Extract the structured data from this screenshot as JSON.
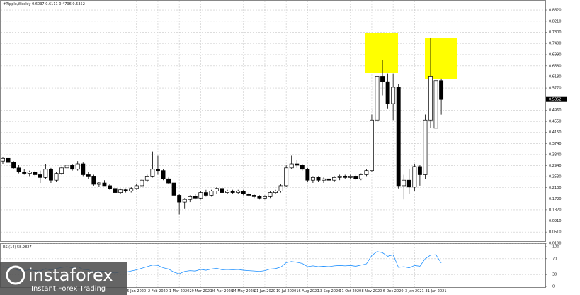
{
  "chart_data": [
    {
      "type": "candlestick",
      "title": "#Ripple,Weekly",
      "categories": [
        null,
        null,
        null,
        null,
        null,
        null,
        null,
        null,
        null,
        null,
        null,
        null,
        null,
        null,
        null,
        null,
        null,
        null,
        null,
        null,
        null,
        null,
        null,
        null,
        null,
        "5 Jan 2020",
        null,
        null,
        null,
        "2 Feb 2020",
        null,
        null,
        null,
        "1 Mar 2020",
        null,
        null,
        null,
        "29 Mar 2020",
        null,
        null,
        null,
        "26 Apr 2020",
        null,
        null,
        null,
        "24 May 2020",
        null,
        null,
        null,
        "21 Jun 2020",
        null,
        null,
        null,
        "19 Jul 2020",
        null,
        null,
        null,
        "16 Aug 2020",
        null,
        null,
        null,
        "13 Sep 2020",
        null,
        null,
        null,
        "11 Oct 2020",
        null,
        null,
        null,
        "8 Nov 2020",
        null,
        null,
        null,
        "6 Dec 2020",
        null,
        null,
        null,
        "3 Jan 2021",
        null,
        null,
        null,
        "31 Jan 2021",
        null
      ],
      "open": [
        0.31,
        0.32,
        0.305,
        0.285,
        0.27,
        0.265,
        0.27,
        0.26,
        0.25,
        0.28,
        0.24,
        0.265,
        0.285,
        0.295,
        0.28,
        0.3,
        0.26,
        0.255,
        0.225,
        0.23,
        0.22,
        0.21,
        0.195,
        0.205,
        0.2,
        0.21,
        0.22,
        0.24,
        0.255,
        0.28,
        0.275,
        0.245,
        0.23,
        0.185,
        0.16,
        0.17,
        0.18,
        0.175,
        0.195,
        0.185,
        0.2,
        0.21,
        0.195,
        0.2,
        0.195,
        0.2,
        0.19,
        0.185,
        0.18,
        0.175,
        0.18,
        0.195,
        0.2,
        0.22,
        0.285,
        0.3,
        0.295,
        0.28,
        0.24,
        0.25,
        0.24,
        0.245,
        0.24,
        0.25,
        0.255,
        0.25,
        0.255,
        0.245,
        0.26,
        0.275,
        0.46,
        0.62,
        0.6,
        0.52,
        0.58,
        0.22,
        0.24,
        0.215,
        0.29,
        0.26,
        0.46,
        0.43,
        0.6037
      ],
      "high": [
        0.325,
        0.325,
        0.31,
        0.295,
        0.28,
        0.275,
        0.275,
        0.275,
        0.3,
        0.285,
        0.27,
        0.29,
        0.3,
        0.3,
        0.31,
        0.305,
        0.27,
        0.26,
        0.235,
        0.24,
        0.225,
        0.215,
        0.21,
        0.21,
        0.215,
        0.225,
        0.245,
        0.26,
        0.345,
        0.33,
        0.28,
        0.25,
        0.235,
        0.19,
        0.175,
        0.185,
        0.19,
        0.2,
        0.205,
        0.205,
        0.215,
        0.225,
        0.205,
        0.205,
        0.205,
        0.205,
        0.195,
        0.19,
        0.185,
        0.185,
        0.2,
        0.205,
        0.225,
        0.295,
        0.33,
        0.315,
        0.3,
        0.285,
        0.255,
        0.255,
        0.25,
        0.25,
        0.255,
        0.26,
        0.26,
        0.26,
        0.26,
        0.265,
        0.28,
        0.48,
        0.78,
        0.68,
        0.63,
        0.63,
        0.59,
        0.26,
        0.28,
        0.3,
        0.295,
        0.48,
        0.76,
        0.64,
        0.6111
      ],
      "low": [
        0.3,
        0.3,
        0.28,
        0.265,
        0.26,
        0.255,
        0.255,
        0.23,
        0.245,
        0.23,
        0.235,
        0.26,
        0.28,
        0.275,
        0.275,
        0.255,
        0.245,
        0.22,
        0.215,
        0.22,
        0.205,
        0.19,
        0.19,
        0.195,
        0.195,
        0.205,
        0.215,
        0.235,
        0.25,
        0.26,
        0.24,
        0.225,
        0.175,
        0.115,
        0.135,
        0.16,
        0.17,
        0.17,
        0.18,
        0.18,
        0.19,
        0.19,
        0.19,
        0.19,
        0.19,
        0.185,
        0.18,
        0.175,
        0.17,
        0.17,
        0.175,
        0.19,
        0.195,
        0.215,
        0.28,
        0.285,
        0.275,
        0.235,
        0.23,
        0.235,
        0.23,
        0.235,
        0.235,
        0.24,
        0.245,
        0.245,
        0.24,
        0.24,
        0.255,
        0.27,
        0.45,
        0.55,
        0.5,
        0.46,
        0.21,
        0.17,
        0.19,
        0.2,
        0.22,
        0.245,
        0.43,
        0.4,
        0.4796
      ],
      "close": [
        0.32,
        0.305,
        0.285,
        0.27,
        0.265,
        0.27,
        0.26,
        0.25,
        0.28,
        0.24,
        0.265,
        0.285,
        0.295,
        0.28,
        0.3,
        0.26,
        0.255,
        0.225,
        0.23,
        0.22,
        0.21,
        0.195,
        0.205,
        0.2,
        0.21,
        0.22,
        0.24,
        0.255,
        0.28,
        0.275,
        0.245,
        0.23,
        0.185,
        0.16,
        0.17,
        0.18,
        0.175,
        0.195,
        0.185,
        0.2,
        0.21,
        0.195,
        0.2,
        0.195,
        0.2,
        0.19,
        0.185,
        0.18,
        0.175,
        0.18,
        0.195,
        0.2,
        0.22,
        0.285,
        0.3,
        0.295,
        0.28,
        0.24,
        0.25,
        0.24,
        0.245,
        0.24,
        0.25,
        0.255,
        0.25,
        0.255,
        0.245,
        0.26,
        0.275,
        0.46,
        0.62,
        0.6,
        0.52,
        0.58,
        0.22,
        0.24,
        0.215,
        0.29,
        0.26,
        0.46,
        0.62,
        0.6037,
        0.5352
      ],
      "ylim": [
        0.01,
        0.888
      ],
      "yticks": [
        {
          "value": 0.862,
          "label": "0.8620"
        },
        {
          "value": 0.821,
          "label": "0.8210"
        },
        {
          "value": 0.78,
          "label": "0.7800"
        },
        {
          "value": 0.74,
          "label": "0.7400"
        },
        {
          "value": 0.699,
          "label": "0.6990"
        },
        {
          "value": 0.658,
          "label": "0.6580"
        },
        {
          "value": 0.618,
          "label": "0.6180"
        },
        {
          "value": 0.577,
          "label": "0.5770"
        },
        {
          "value": 0.496,
          "label": "0.4960"
        },
        {
          "value": 0.455,
          "label": "0.4550"
        },
        {
          "value": 0.415,
          "label": "0.4150"
        },
        {
          "value": 0.374,
          "label": "0.3740"
        },
        {
          "value": 0.334,
          "label": "0.3340"
        },
        {
          "value": 0.294,
          "label": "0.2940"
        },
        {
          "value": 0.253,
          "label": "0.2530"
        },
        {
          "value": 0.213,
          "label": "0.2130"
        },
        {
          "value": 0.172,
          "label": "0.1720"
        },
        {
          "value": 0.132,
          "label": "0.1320"
        },
        {
          "value": 0.091,
          "label": "0.0910"
        },
        {
          "value": 0.051,
          "label": "0.0510"
        },
        {
          "value": 0.01,
          "label": "0.0100"
        }
      ],
      "up_color": "#ffffff",
      "down_color": "#000000",
      "grid": true
    },
    {
      "type": "line",
      "title": "RSI(14)",
      "color": "#1e90ff",
      "values": [
        50,
        48,
        44,
        41,
        40,
        42,
        40,
        39,
        45,
        41,
        45,
        48,
        50,
        47,
        50,
        43,
        42,
        37,
        39,
        38,
        36,
        34,
        37,
        36,
        39,
        42,
        46,
        50,
        54,
        53,
        47,
        44,
        36,
        32,
        38,
        40,
        39,
        43,
        41,
        44,
        46,
        42,
        43,
        42,
        43,
        41,
        40,
        39,
        38,
        40,
        44,
        45,
        49,
        60,
        63,
        61,
        58,
        50,
        52,
        50,
        51,
        50,
        52,
        53,
        52,
        53,
        51,
        54,
        57,
        78,
        88,
        85,
        76,
        80,
        48,
        50,
        47,
        53,
        51,
        70,
        79,
        80,
        58.9827
      ],
      "ylim": [
        0,
        100
      ],
      "yticks": [
        100,
        70,
        30,
        0
      ]
    }
  ],
  "watermark": {
    "brand": "instaforex",
    "tagline": "Instant Forex Trading"
  }
}
